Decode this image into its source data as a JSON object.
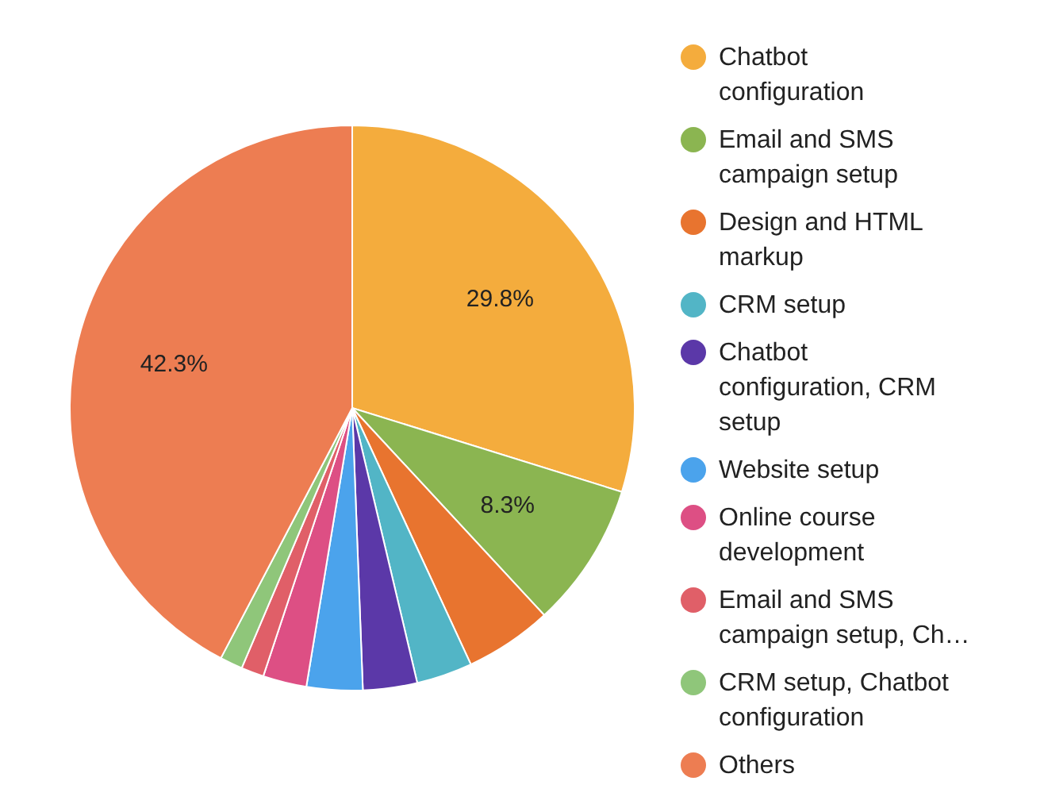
{
  "chart_data": {
    "type": "pie",
    "categories": [
      "Chatbot configuration",
      "Email and SMS campaign setup",
      "Design and HTML markup",
      "CRM setup",
      "Chatbot configuration, CRM setup",
      "Website setup",
      "Online course development",
      "Email and SMS campaign setup, Ch…",
      "CRM setup, Chatbot configuration",
      "Others"
    ],
    "values": [
      29.8,
      8.3,
      5.0,
      3.2,
      3.1,
      3.2,
      2.5,
      1.3,
      1.3,
      42.3
    ],
    "colors": [
      "#f4ac3d",
      "#8bb551",
      "#e8742f",
      "#52b5c6",
      "#5b38a8",
      "#4ba3ec",
      "#dd4f84",
      "#e05f68",
      "#8fc67a",
      "#ed7d52"
    ],
    "value_labels": [
      "29.8%",
      "8.3%",
      null,
      null,
      null,
      null,
      null,
      null,
      null,
      "42.3%"
    ],
    "legend": "right"
  }
}
